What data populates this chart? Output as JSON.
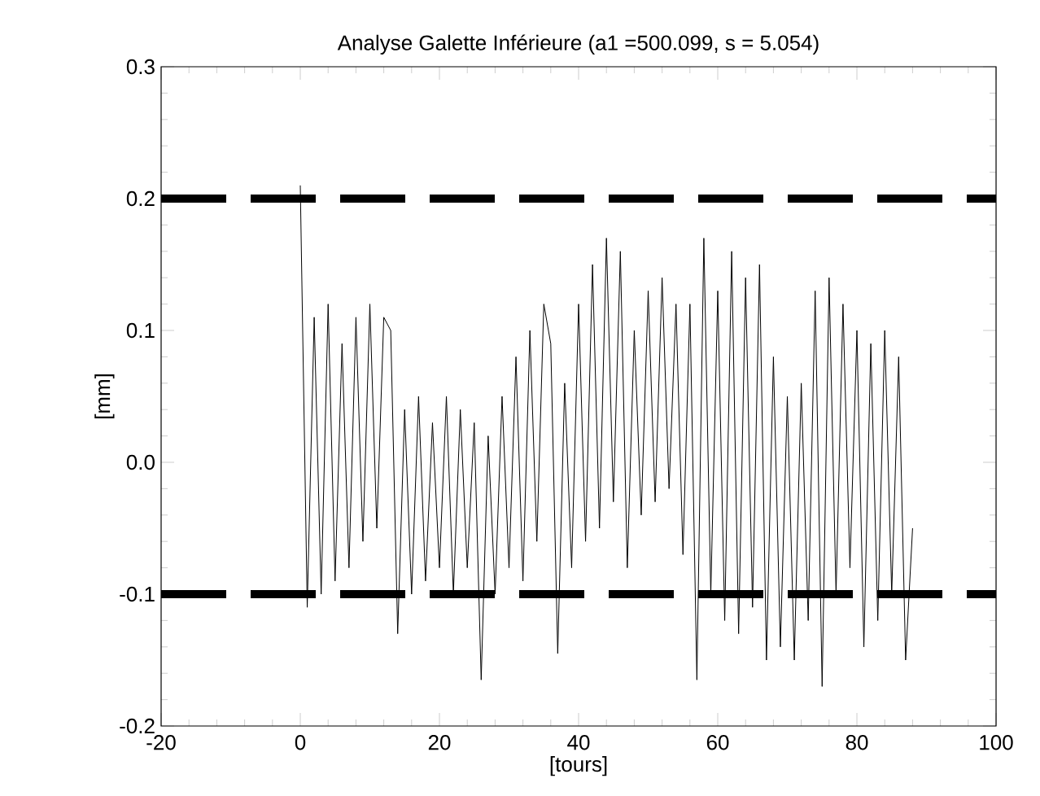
{
  "chart_data": {
    "type": "line",
    "title": "Analyse Galette Inférieure (a1 =500.099, s  =  5.054)",
    "xlabel": "[tours]",
    "ylabel": "[mm]",
    "xlim": [
      -20,
      100
    ],
    "ylim": [
      -0.2,
      0.3
    ],
    "xticks": [
      -20,
      0,
      20,
      40,
      60,
      80,
      100
    ],
    "yticks": [
      -0.2,
      -0.1,
      {
        "value": 0,
        "label": "0.0"
      },
      0.1,
      0.2,
      0.3
    ],
    "grid": false,
    "marker": "none",
    "line_style": "solid",
    "ref_lines": [
      {
        "axis": "y",
        "value": 0.2,
        "color": "#000000",
        "line_style": "dashed"
      },
      {
        "axis": "y",
        "value": -0.1,
        "color": "#000000",
        "line_style": "dashed"
      }
    ],
    "series": [
      {
        "color": "#000000",
        "x": [
          0,
          1,
          2,
          3,
          4,
          5,
          6,
          7,
          8,
          9,
          10,
          11,
          12,
          13,
          14,
          15,
          16,
          17,
          18,
          19,
          20,
          21,
          22,
          23,
          24,
          25,
          26,
          27,
          28,
          29,
          30,
          31,
          32,
          33,
          34,
          35,
          36,
          37,
          38,
          39,
          40,
          41,
          42,
          43,
          44,
          45,
          46,
          47,
          48,
          49,
          50,
          51,
          52,
          53,
          54,
          55,
          56,
          57,
          58,
          59,
          60,
          61,
          62,
          63,
          64,
          65,
          66,
          67,
          68,
          69,
          70,
          71,
          72,
          73,
          74,
          75,
          76,
          77,
          78,
          79,
          80,
          81,
          82,
          83,
          84,
          85,
          86,
          87,
          88
        ],
        "values": [
          0.21,
          -0.11,
          0.11,
          -0.1,
          0.12,
          -0.09,
          0.09,
          -0.08,
          0.11,
          -0.06,
          0.12,
          -0.05,
          0.11,
          0.1,
          -0.13,
          0.04,
          -0.1,
          0.05,
          -0.09,
          0.03,
          -0.08,
          0.05,
          -0.1,
          0.04,
          -0.08,
          0.03,
          -0.165,
          0.02,
          -0.1,
          0.05,
          -0.08,
          0.08,
          -0.09,
          0.1,
          -0.06,
          0.12,
          0.09,
          -0.145,
          0.06,
          -0.08,
          0.12,
          -0.06,
          0.15,
          -0.05,
          0.17,
          -0.03,
          0.16,
          -0.08,
          0.1,
          -0.04,
          0.13,
          -0.03,
          0.14,
          -0.02,
          0.12,
          -0.07,
          0.12,
          -0.165,
          0.17,
          -0.1,
          0.13,
          -0.12,
          0.16,
          -0.13,
          0.14,
          -0.11,
          0.15,
          -0.15,
          0.08,
          -0.14,
          0.05,
          -0.15,
          0.06,
          -0.12,
          0.13,
          -0.17,
          0.14,
          -0.1,
          0.12,
          -0.08,
          0.1,
          -0.14,
          0.09,
          -0.12,
          0.1,
          -0.1,
          0.08,
          -0.15,
          -0.05
        ]
      }
    ]
  }
}
